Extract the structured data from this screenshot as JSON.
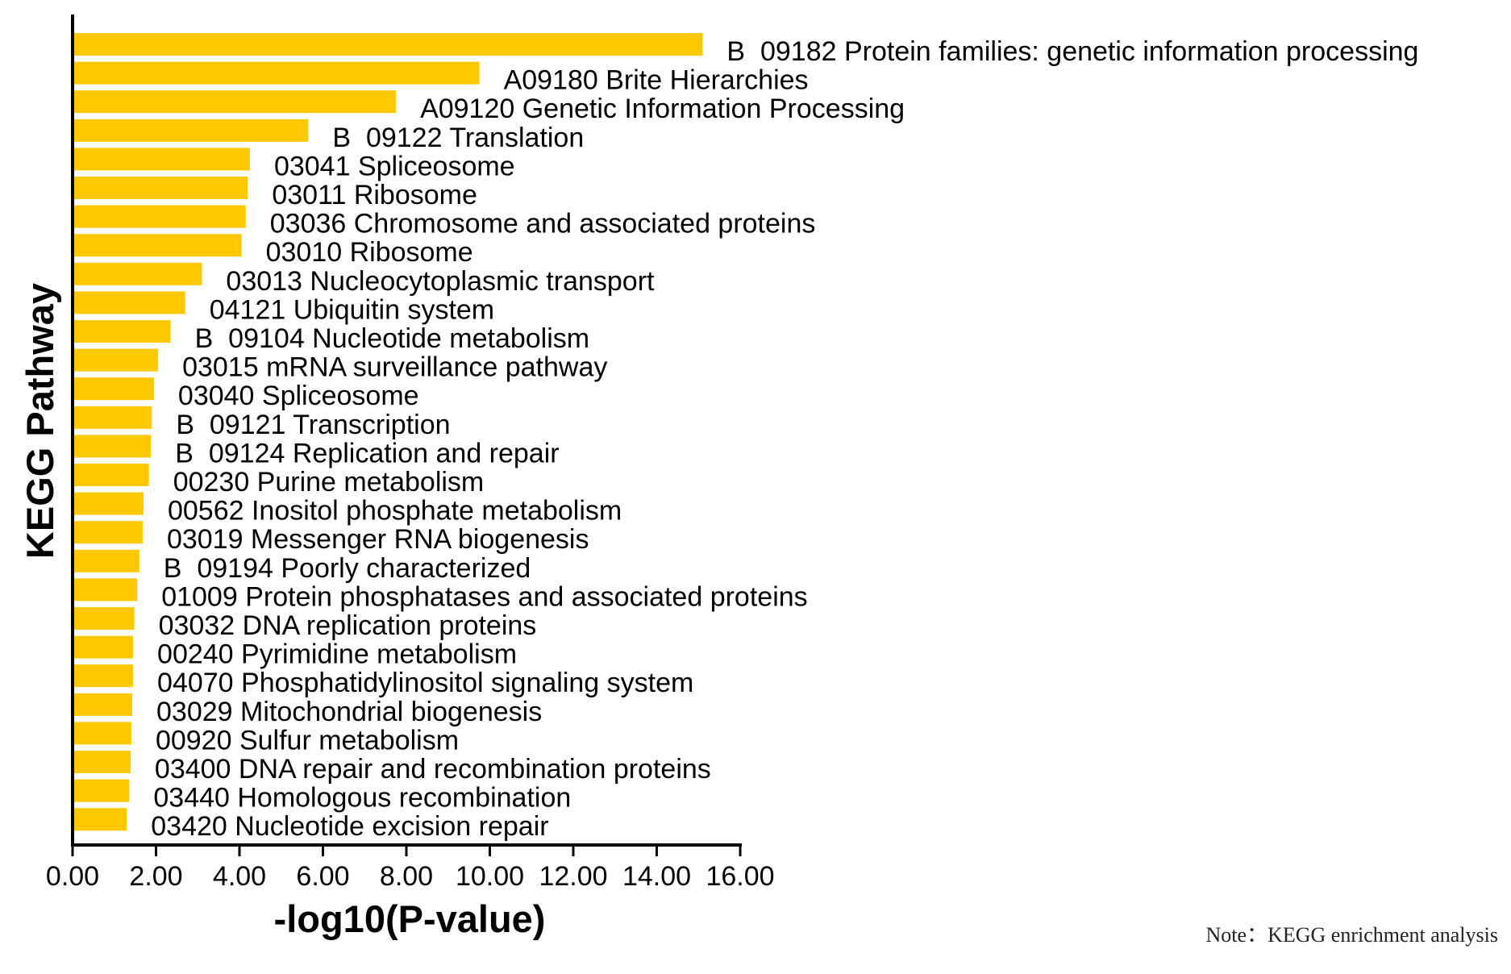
{
  "chart_data": {
    "type": "bar",
    "orientation": "horizontal",
    "xlabel": "-log10(P-value)",
    "ylabel": "KEGG Pathway",
    "xlim": [
      0,
      16
    ],
    "x_ticks": [
      "0.00",
      "2.00",
      "4.00",
      "6.00",
      "8.00",
      "10.00",
      "12.00",
      "14.00",
      "16.00"
    ],
    "bar_color": "#FFC800",
    "grid": false,
    "legend": "none",
    "note": "Note：KEGG enrichment analysis",
    "categories": [
      "B  09182 Protein families: genetic information processing",
      "A09180 Brite Hierarchies",
      "A09120 Genetic Information Processing",
      "B  09122 Translation",
      "03041 Spliceosome",
      "03011 Ribosome",
      "03036 Chromosome and associated proteins",
      "03010 Ribosome",
      "03013 Nucleocytoplasmic transport",
      "04121 Ubiquitin system",
      "B  09104 Nucleotide metabolism",
      "03015 mRNA surveillance pathway",
      "03040 Spliceosome",
      "B  09121 Transcription",
      "B  09124 Replication and repair",
      "00230 Purine metabolism",
      "00562 Inositol phosphate metabolism",
      "03019 Messenger RNA biogenesis",
      "B  09194 Poorly characterized",
      "01009 Protein phosphatases and associated proteins",
      "03032 DNA replication proteins",
      "00240 Pyrimidine metabolism",
      "04070 Phosphatidylinositol signaling system",
      "03029 Mitochondrial biogenesis",
      "00920 Sulfur metabolism",
      "03400 DNA repair and recombination proteins",
      "03440 Homologous recombination",
      "03420 Nucleotide excision repair"
    ],
    "values": [
      15.1,
      9.75,
      7.75,
      5.65,
      4.25,
      4.2,
      4.15,
      4.05,
      3.1,
      2.7,
      2.35,
      2.05,
      1.95,
      1.9,
      1.88,
      1.83,
      1.7,
      1.68,
      1.6,
      1.55,
      1.48,
      1.45,
      1.45,
      1.43,
      1.41,
      1.39,
      1.36,
      1.3
    ]
  }
}
